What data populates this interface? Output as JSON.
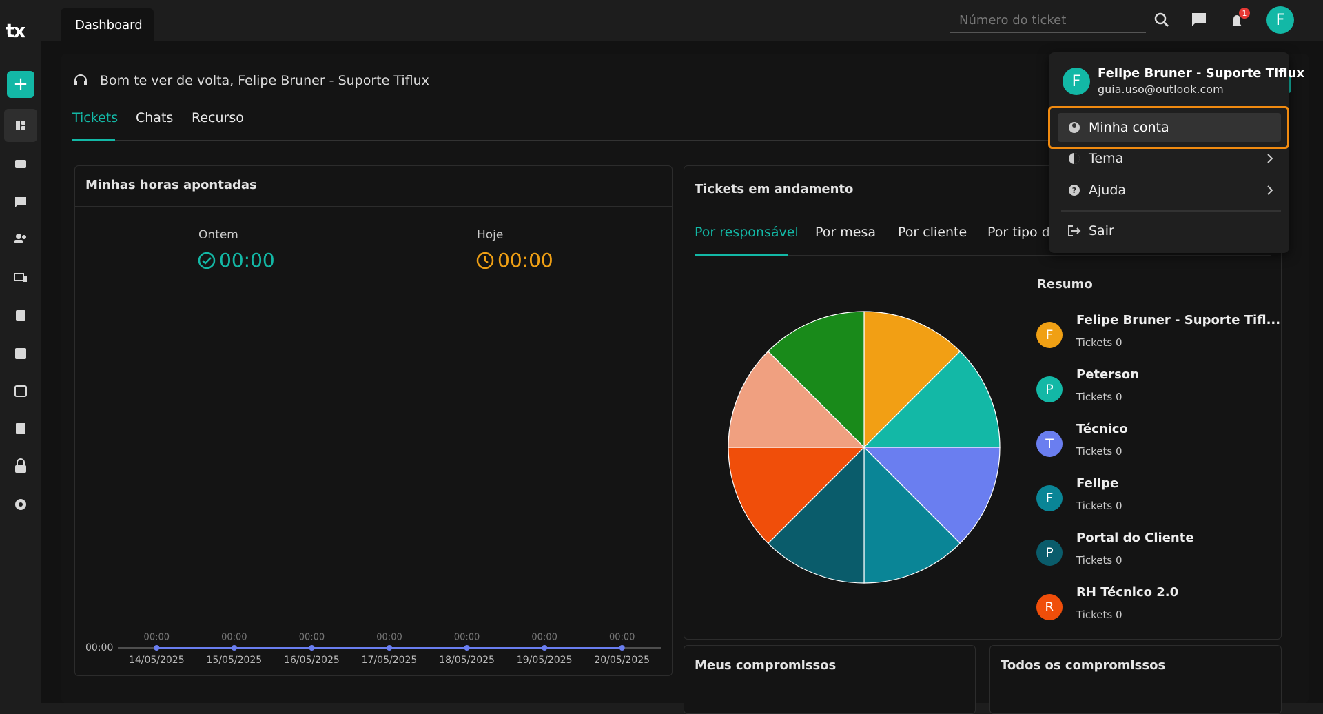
{
  "header": {
    "logo": "tx",
    "tab": "Dashboard",
    "search_placeholder": "Número do ticket",
    "notification_count": "1",
    "avatar": "F"
  },
  "greeting": "Bom te ver de volta, Felipe Bruner - Suporte Tiflux",
  "tabs": [
    "Tickets",
    "Chats",
    "Recurso"
  ],
  "hours_card": {
    "title": "Minhas horas apontadas",
    "yesterday": {
      "label": "Ontem",
      "value": "00:00"
    },
    "today": {
      "label": "Hoje",
      "value": "00:00"
    }
  },
  "hours_chart": {
    "type": "line",
    "x": [
      "14/05/2025",
      "15/05/2025",
      "16/05/2025",
      "17/05/2025",
      "18/05/2025",
      "19/05/2025",
      "20/05/2025"
    ],
    "values": [
      0,
      0,
      0,
      0,
      0,
      0,
      0
    ],
    "value_labels": [
      "00:00",
      "00:00",
      "00:00",
      "00:00",
      "00:00",
      "00:00",
      "00:00"
    ],
    "ylim": [
      0,
      1
    ],
    "yticks": [
      {
        "value": 0,
        "label": "00:00"
      }
    ],
    "color": "#6a7ef0"
  },
  "tickets_card": {
    "title": "Tickets em andamento",
    "tabs": [
      "Por responsável",
      "Por mesa",
      "Por cliente",
      "Por tipo de"
    ],
    "summary_title": "Resumo",
    "people": [
      {
        "initial": "F",
        "name": "Felipe Bruner - Suporte Tifl...",
        "tickets": "Tickets 0",
        "color": "#f0a014"
      },
      {
        "initial": "P",
        "name": "Peterson",
        "tickets": "Tickets 0",
        "color": "#13b8a6"
      },
      {
        "initial": "T",
        "name": "Técnico",
        "tickets": "Tickets 0",
        "color": "#6a7ef0"
      },
      {
        "initial": "F",
        "name": "Felipe",
        "tickets": "Tickets 0",
        "color": "#0a8596"
      },
      {
        "initial": "P",
        "name": "Portal do Cliente",
        "tickets": "Tickets 0",
        "color": "#0a5c6b"
      },
      {
        "initial": "R",
        "name": "RH Técnico 2.0",
        "tickets": "Tickets 0",
        "color": "#f04e0a"
      }
    ]
  },
  "tickets_pie": {
    "type": "pie",
    "values": [
      1,
      1,
      1,
      1,
      1,
      1,
      1,
      1
    ],
    "colors": [
      "#f29f14",
      "#13b8a6",
      "#6a7ef0",
      "#0a8596",
      "#0a5c6b",
      "#f04e0a",
      "#f0a080",
      "#198a1a"
    ]
  },
  "appointments": [
    "Meus compromissos",
    "Todos os compromissos"
  ],
  "user_menu": {
    "avatar": "F",
    "name": "Felipe Bruner - Suporte Tiflux",
    "email": "guia.uso@outlook.com",
    "items": [
      "Minha conta",
      "Tema",
      "Ajuda",
      "Sair"
    ]
  }
}
